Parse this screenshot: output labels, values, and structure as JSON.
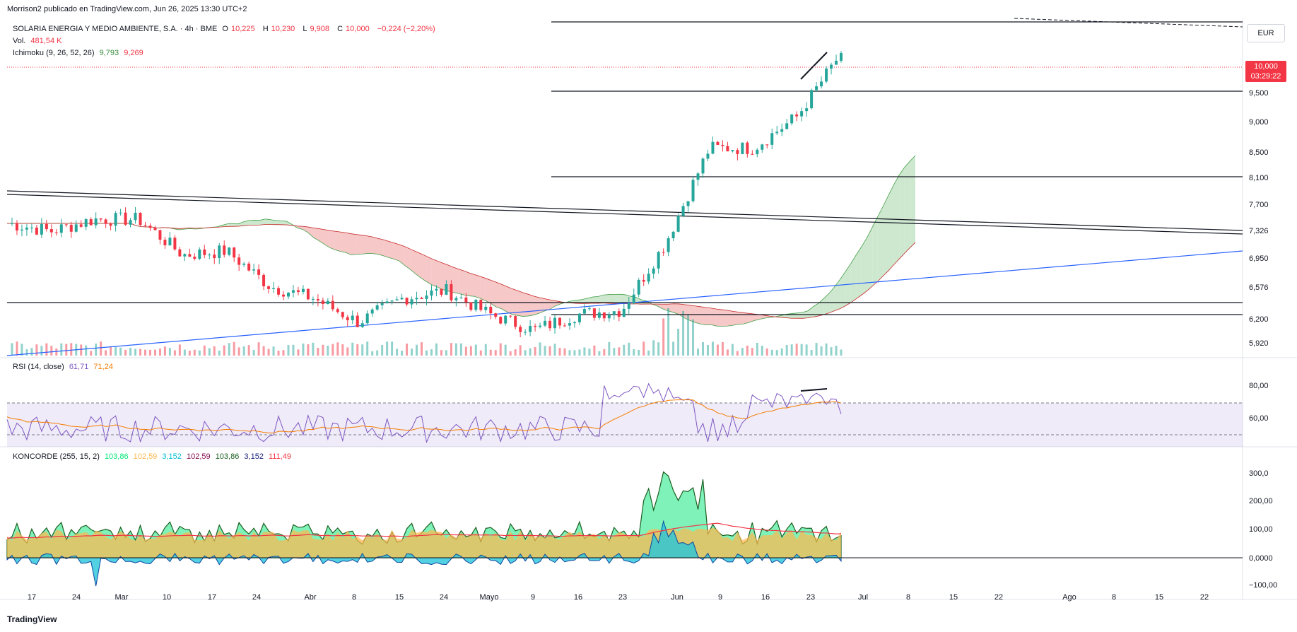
{
  "header": {
    "publisher": "Morrison2 publicado en TradingView.com, Jun 26, 2025 13:30 UTC+2"
  },
  "legend_main": {
    "symbol": "SOLARIA ENERGIA Y MEDIO AMBIENTE, S.A. · 4h · BME",
    "o_label": "O",
    "o_value": "10,225",
    "h_label": "H",
    "h_value": "10,230",
    "l_label": "L",
    "l_value": "9,908",
    "c_label": "C",
    "c_value": "10,000",
    "change": "−0,224 (−2,20%)",
    "vol_label": "Vol.",
    "vol_value": "481,54 K",
    "ichimoku_label": "Ichimoku (9, 26, 52, 26)",
    "ichimoku_v1": "9,793",
    "ichimoku_v2": "9,269"
  },
  "legend_rsi": {
    "label": "RSI (14, close)",
    "v1": "61,71",
    "v2": "71,24"
  },
  "legend_koncorde": {
    "label": "KONCORDE (255, 15, 2)",
    "v1": "103,86",
    "v2": "102,59",
    "v3": "3,152",
    "v4": "102,59",
    "v5": "103,86",
    "v6": "3,152",
    "v7": "111,49"
  },
  "currency": "EUR",
  "price_tag": {
    "price": "10,000",
    "countdown": "03:29:22"
  },
  "footer": {
    "brand": "TradingView"
  },
  "colors": {
    "up": "#26a69a",
    "down": "#f23645",
    "cloud_green": "#a5d6a7",
    "cloud_red": "#ef9a9a",
    "trend_blue": "#2962ff",
    "rsi": "#7e57c2",
    "rsi_ma": "#f57c00"
  },
  "chart_data": [
    {
      "type": "candlestick",
      "title": "SOLARIA ENERGIA Y MEDIO AMBIENTE, S.A. · 4h · BME",
      "y_ticks": [
        "9,500",
        "9,000",
        "8,500",
        "8,100",
        "7,700",
        "7,326",
        "6,950",
        "6,576",
        "6,200",
        "5,920"
      ],
      "x_ticks": [
        "17",
        "24",
        "Mar",
        "10",
        "17",
        "24",
        "Abr",
        "8",
        "15",
        "24",
        "Mayo",
        "9",
        "16",
        "23",
        "Jun",
        "9",
        "16",
        "23",
        "Jul",
        "8",
        "15",
        "22",
        "Ago",
        "8",
        "15",
        "22"
      ],
      "horizontal_levels": [
        10.5,
        9.5,
        8.1,
        6.45,
        6.32
      ],
      "last_close": 10.0,
      "weekly_closes": [
        {
          "date": "Feb 14",
          "close": 7.85
        },
        {
          "date": "Feb 21",
          "close": 7.75
        },
        {
          "date": "Feb 28",
          "close": 7.9
        },
        {
          "date": "Mar 7",
          "close": 7.9
        },
        {
          "date": "Mar 14",
          "close": 7.45
        },
        {
          "date": "Mar 21",
          "close": 7.5
        },
        {
          "date": "Mar 28",
          "close": 7.05
        },
        {
          "date": "Apr 4",
          "close": 6.9
        },
        {
          "date": "Apr 11",
          "close": 6.6
        },
        {
          "date": "Apr 18",
          "close": 6.9
        },
        {
          "date": "Apr 25",
          "close": 7.0
        },
        {
          "date": "May 2",
          "close": 6.7
        },
        {
          "date": "May 9",
          "close": 6.5
        },
        {
          "date": "May 16",
          "close": 6.7
        },
        {
          "date": "May 23",
          "close": 6.75
        },
        {
          "date": "May 30",
          "close": 7.6
        },
        {
          "date": "Jun 6",
          "close": 8.8
        },
        {
          "date": "Jun 13",
          "close": 8.8
        },
        {
          "date": "Jun 20",
          "close": 9.2
        },
        {
          "date": "Jun 26",
          "close": 10.0
        }
      ]
    },
    {
      "type": "line",
      "title": "RSI (14, close)",
      "y_ticks": [
        "80,00",
        "60,00"
      ],
      "bands": [
        70,
        50
      ],
      "series": [
        {
          "name": "RSI",
          "last": 61.71
        },
        {
          "name": "RSI MA",
          "last": 71.24
        }
      ]
    },
    {
      "type": "area",
      "title": "KONCORDE (255, 15, 2)",
      "y_ticks": [
        "300,0",
        "200,00",
        "100,00",
        "0,0000",
        "−100,00"
      ]
    }
  ]
}
